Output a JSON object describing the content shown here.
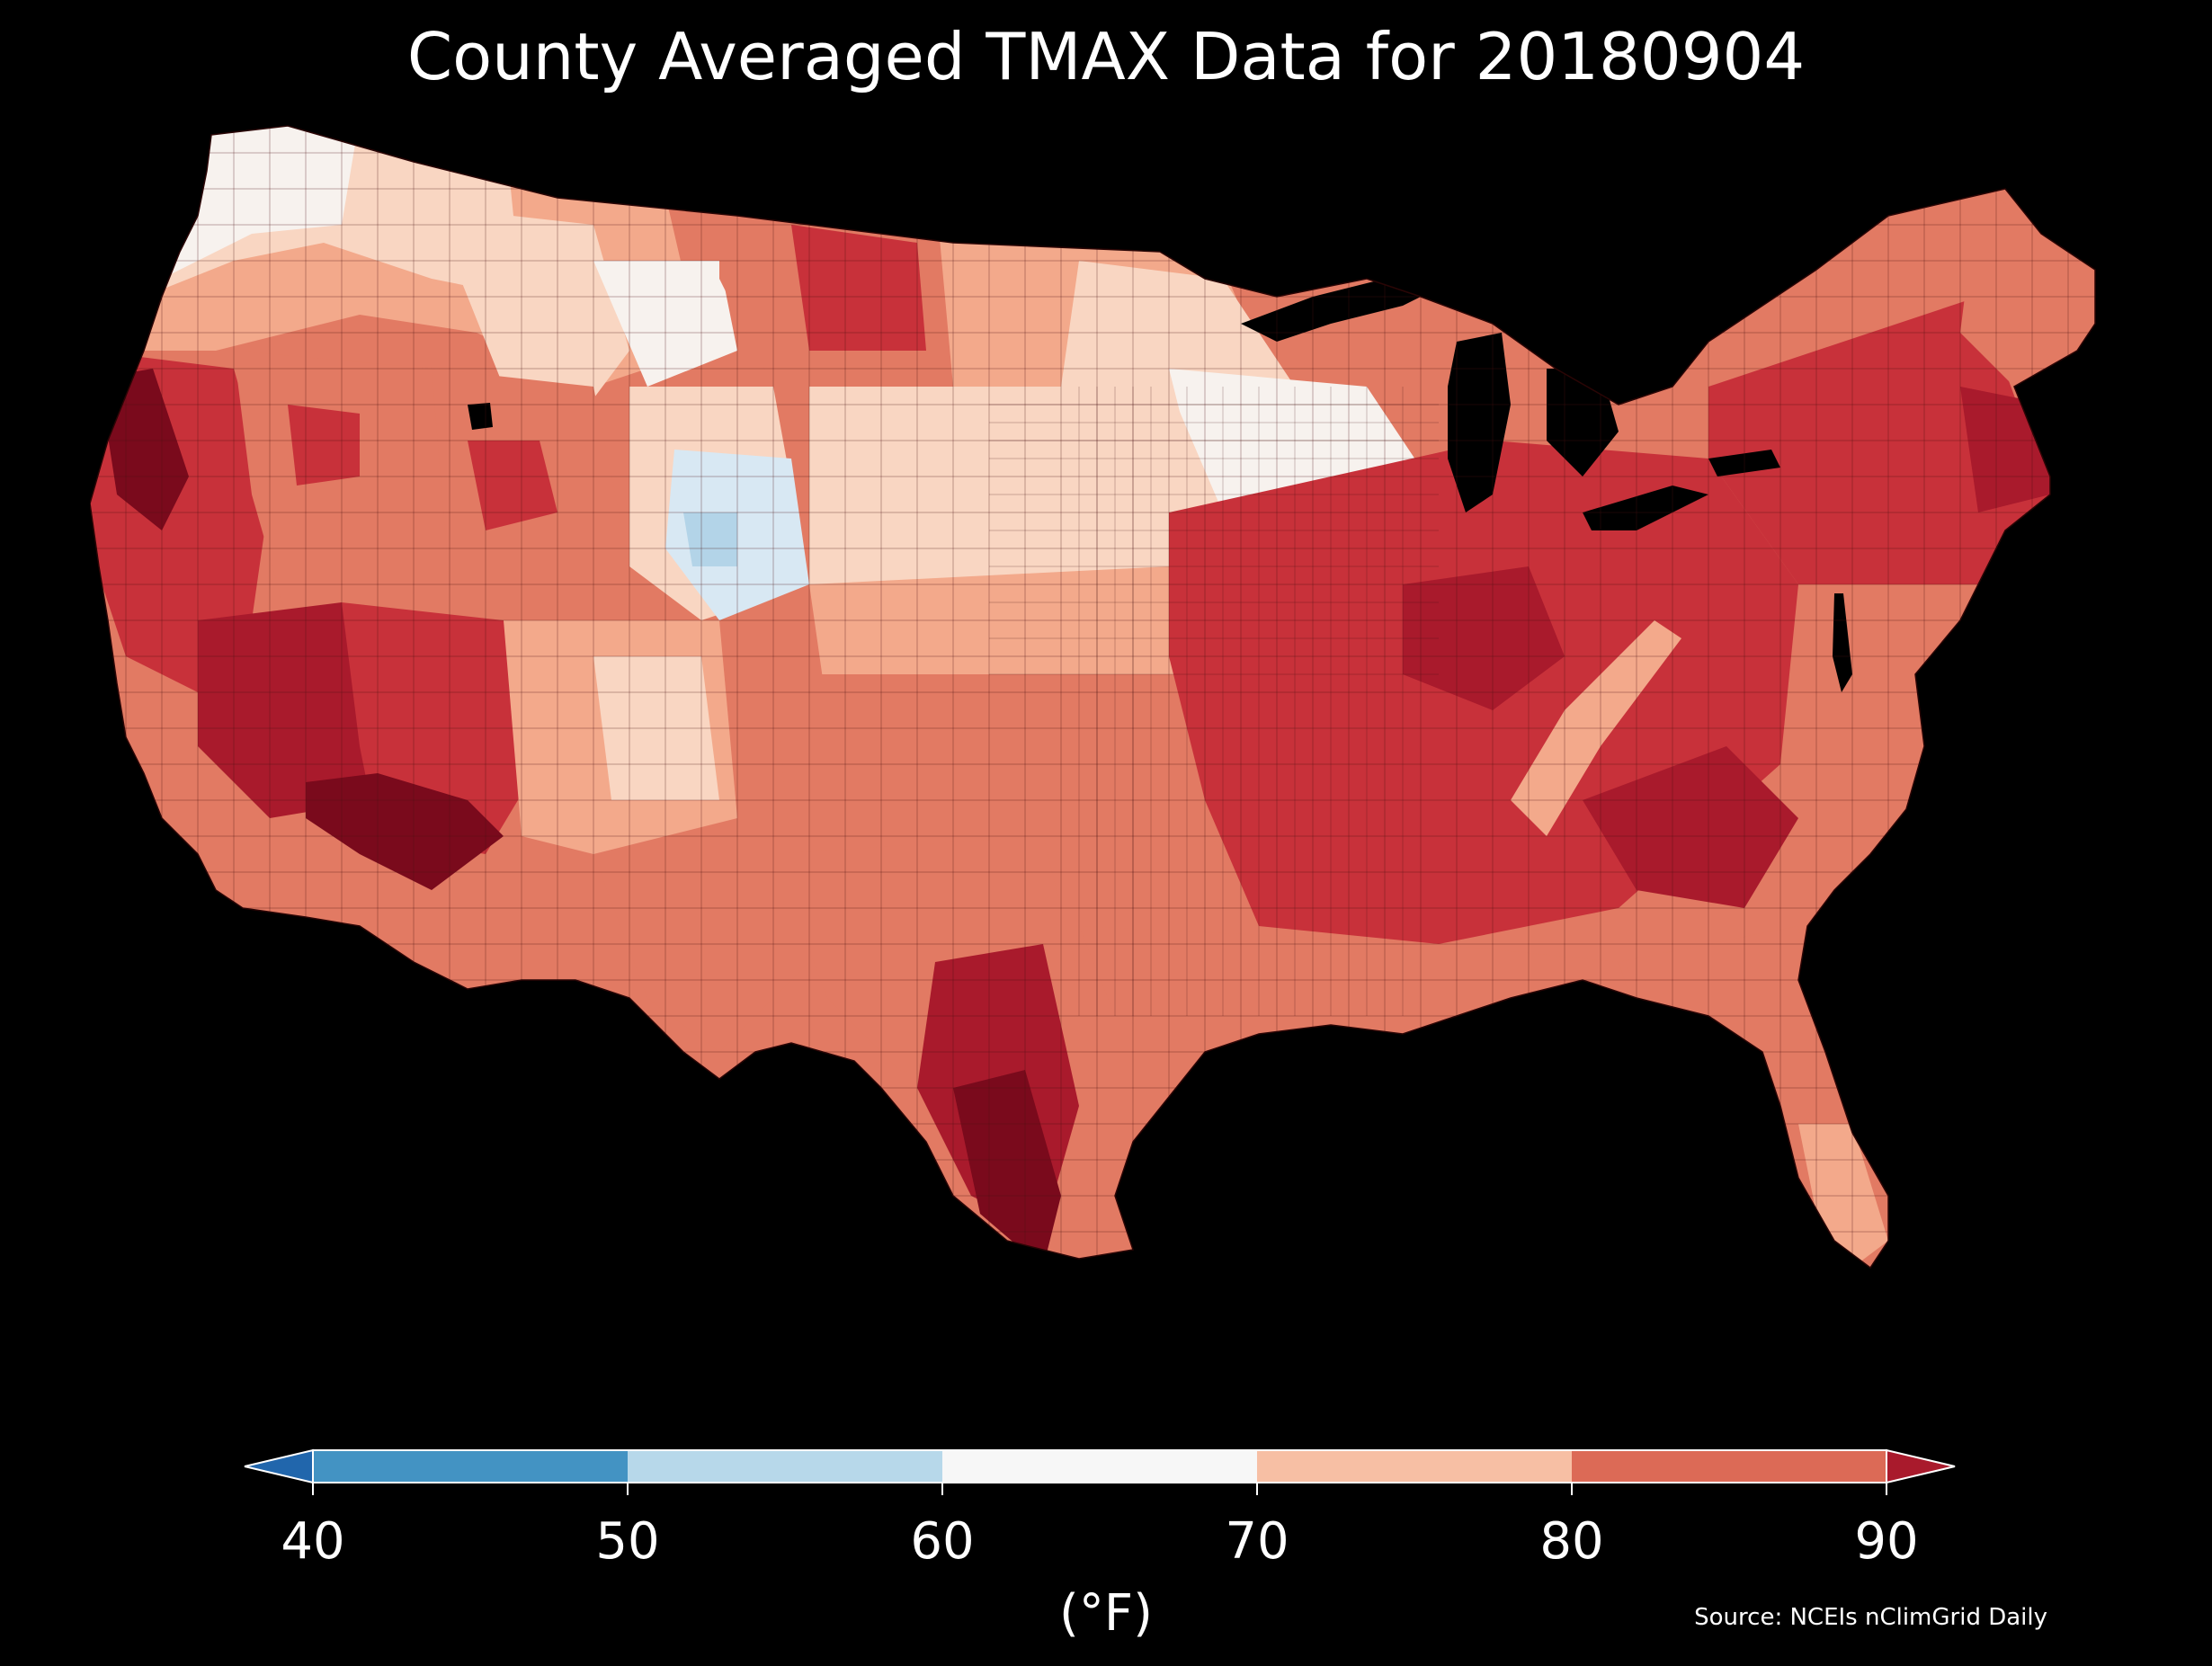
{
  "title": "County Averaged TMAX Data for 20180904",
  "colorbar": {
    "label": "(°F)",
    "ticks": [
      "40",
      "50",
      "60",
      "70",
      "80",
      "90"
    ],
    "bins": [
      {
        "from": 40,
        "to": 50,
        "color": "#4393c3"
      },
      {
        "from": 50,
        "to": 60,
        "color": "#b7d8ea"
      },
      {
        "from": 60,
        "to": 70,
        "color": "#f7f7f7"
      },
      {
        "from": 70,
        "to": 80,
        "color": "#f7bfa4"
      },
      {
        "from": 80,
        "to": 90,
        "color": "#dc6a56"
      }
    ],
    "under_color": "#2166ac",
    "over_color": "#a91a2c",
    "extend": "both"
  },
  "source": "Source: NCEIs nClimGrid Daily",
  "map": {
    "subject": "Contiguous United States county-level maximum temperature",
    "background": "#000000",
    "colors": {
      "hottest": "#7a0a1c",
      "very_hot": "#a91a2c",
      "hot": "#c8313a",
      "warm": "#e27a63",
      "mild": "#f3a98b",
      "cool_warm": "#f9d6c2",
      "neutral": "#f7f2ee",
      "cool": "#d8e8f3",
      "cooler": "#b3d4e8"
    }
  }
}
